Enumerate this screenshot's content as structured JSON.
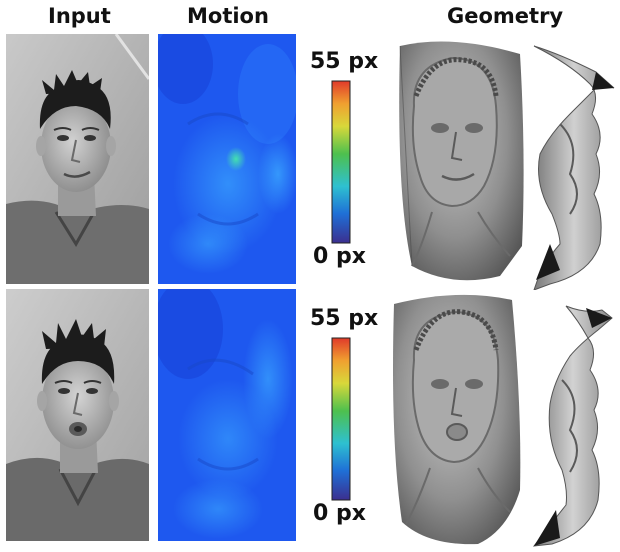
{
  "headers": {
    "input": "Input",
    "motion": "Motion",
    "geometry": "Geometry"
  },
  "rows": [
    {
      "colorbar": {
        "max_label": "55 px",
        "min_label": "0 px"
      },
      "expression": "neutral-smile"
    },
    {
      "colorbar": {
        "max_label": "55 px",
        "min_label": "0 px"
      },
      "expression": "pucker"
    }
  ],
  "colors": {
    "motion_base": "#1f5df2",
    "motion_light": "#2d8cf7",
    "colormap": [
      "#3b2f8f",
      "#1f6fd6",
      "#2ec0d0",
      "#4ec04e",
      "#d8d83a",
      "#f0a030",
      "#e03a2a"
    ],
    "geometry_surface": "#9a9a9a"
  }
}
